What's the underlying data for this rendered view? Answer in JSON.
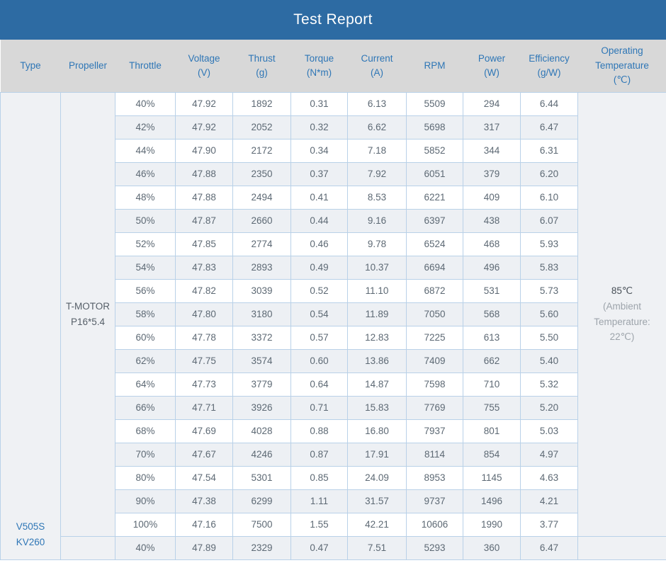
{
  "title": "Test Report",
  "colors": {
    "banner_bg": "#2d6ba3",
    "header_bg": "#d8d8d8",
    "header_text": "#2e76b6",
    "row_stripe": "#edf0f4",
    "cell_border": "#b9d1e8",
    "accent_text": "#2e76b6",
    "data_text": "#5d6974"
  },
  "chart_data": {
    "type": "table",
    "title": "Test Report",
    "columns": [
      {
        "label": "Type",
        "lines": [
          "Type"
        ]
      },
      {
        "label": "Propeller",
        "lines": [
          "Propeller"
        ]
      },
      {
        "label": "Throttle",
        "lines": [
          "Throttle"
        ]
      },
      {
        "label": "Voltage (V)",
        "lines": [
          "Voltage",
          "(V)"
        ]
      },
      {
        "label": "Thrust (g)",
        "lines": [
          "Thrust",
          "(g)"
        ]
      },
      {
        "label": "Torque (N*m)",
        "lines": [
          "Torque",
          "(N*m)"
        ]
      },
      {
        "label": "Current (A)",
        "lines": [
          "Current",
          "(A)"
        ]
      },
      {
        "label": "RPM",
        "lines": [
          "RPM"
        ]
      },
      {
        "label": "Power (W)",
        "lines": [
          "Power",
          "(W)"
        ]
      },
      {
        "label": "Efficiency (g/W)",
        "lines": [
          "Efficiency",
          "(g/W)"
        ]
      },
      {
        "label": "Operating Temperature (℃)",
        "lines": [
          "Operating",
          "Temperature",
          "(℃)"
        ]
      }
    ],
    "type_cell": {
      "value": "V505S KV260",
      "lines": [
        "V505S",
        "KV260"
      ]
    },
    "groups": [
      {
        "propeller": "T-MOTOR P16*5.4",
        "propeller_lines": [
          "T-MOTOR",
          "P16*5.4"
        ],
        "temperature_main": "85℃",
        "temperature_sub_lines": [
          "(Ambient",
          "Temperature:",
          "22℃)"
        ],
        "rows": [
          [
            "40%",
            "47.92",
            "1892",
            "0.31",
            "6.13",
            "5509",
            "294",
            "6.44"
          ],
          [
            "42%",
            "47.92",
            "2052",
            "0.32",
            "6.62",
            "5698",
            "317",
            "6.47"
          ],
          [
            "44%",
            "47.90",
            "2172",
            "0.34",
            "7.18",
            "5852",
            "344",
            "6.31"
          ],
          [
            "46%",
            "47.88",
            "2350",
            "0.37",
            "7.92",
            "6051",
            "379",
            "6.20"
          ],
          [
            "48%",
            "47.88",
            "2494",
            "0.41",
            "8.53",
            "6221",
            "409",
            "6.10"
          ],
          [
            "50%",
            "47.87",
            "2660",
            "0.44",
            "9.16",
            "6397",
            "438",
            "6.07"
          ],
          [
            "52%",
            "47.85",
            "2774",
            "0.46",
            "9.78",
            "6524",
            "468",
            "5.93"
          ],
          [
            "54%",
            "47.83",
            "2893",
            "0.49",
            "10.37",
            "6694",
            "496",
            "5.83"
          ],
          [
            "56%",
            "47.82",
            "3039",
            "0.52",
            "11.10",
            "6872",
            "531",
            "5.73"
          ],
          [
            "58%",
            "47.80",
            "3180",
            "0.54",
            "11.89",
            "7050",
            "568",
            "5.60"
          ],
          [
            "60%",
            "47.78",
            "3372",
            "0.57",
            "12.83",
            "7225",
            "613",
            "5.50"
          ],
          [
            "62%",
            "47.75",
            "3574",
            "0.60",
            "13.86",
            "7409",
            "662",
            "5.40"
          ],
          [
            "64%",
            "47.73",
            "3779",
            "0.64",
            "14.87",
            "7598",
            "710",
            "5.32"
          ],
          [
            "66%",
            "47.71",
            "3926",
            "0.71",
            "15.83",
            "7769",
            "755",
            "5.20"
          ],
          [
            "68%",
            "47.69",
            "4028",
            "0.88",
            "16.80",
            "7937",
            "801",
            "5.03"
          ],
          [
            "70%",
            "47.67",
            "4246",
            "0.87",
            "17.91",
            "8114",
            "854",
            "4.97"
          ],
          [
            "80%",
            "47.54",
            "5301",
            "0.85",
            "24.09",
            "8953",
            "1145",
            "4.63"
          ],
          [
            "90%",
            "47.38",
            "6299",
            "1.11",
            "31.57",
            "9737",
            "1496",
            "4.21"
          ],
          [
            "100%",
            "47.16",
            "7500",
            "1.55",
            "42.21",
            "10606",
            "1990",
            "3.77"
          ]
        ]
      },
      {
        "propeller": "",
        "propeller_lines": [],
        "temperature_main": "",
        "temperature_sub_lines": [],
        "rows": [
          [
            "40%",
            "47.89",
            "2329",
            "0.47",
            "7.51",
            "5293",
            "360",
            "6.47"
          ]
        ]
      }
    ]
  }
}
